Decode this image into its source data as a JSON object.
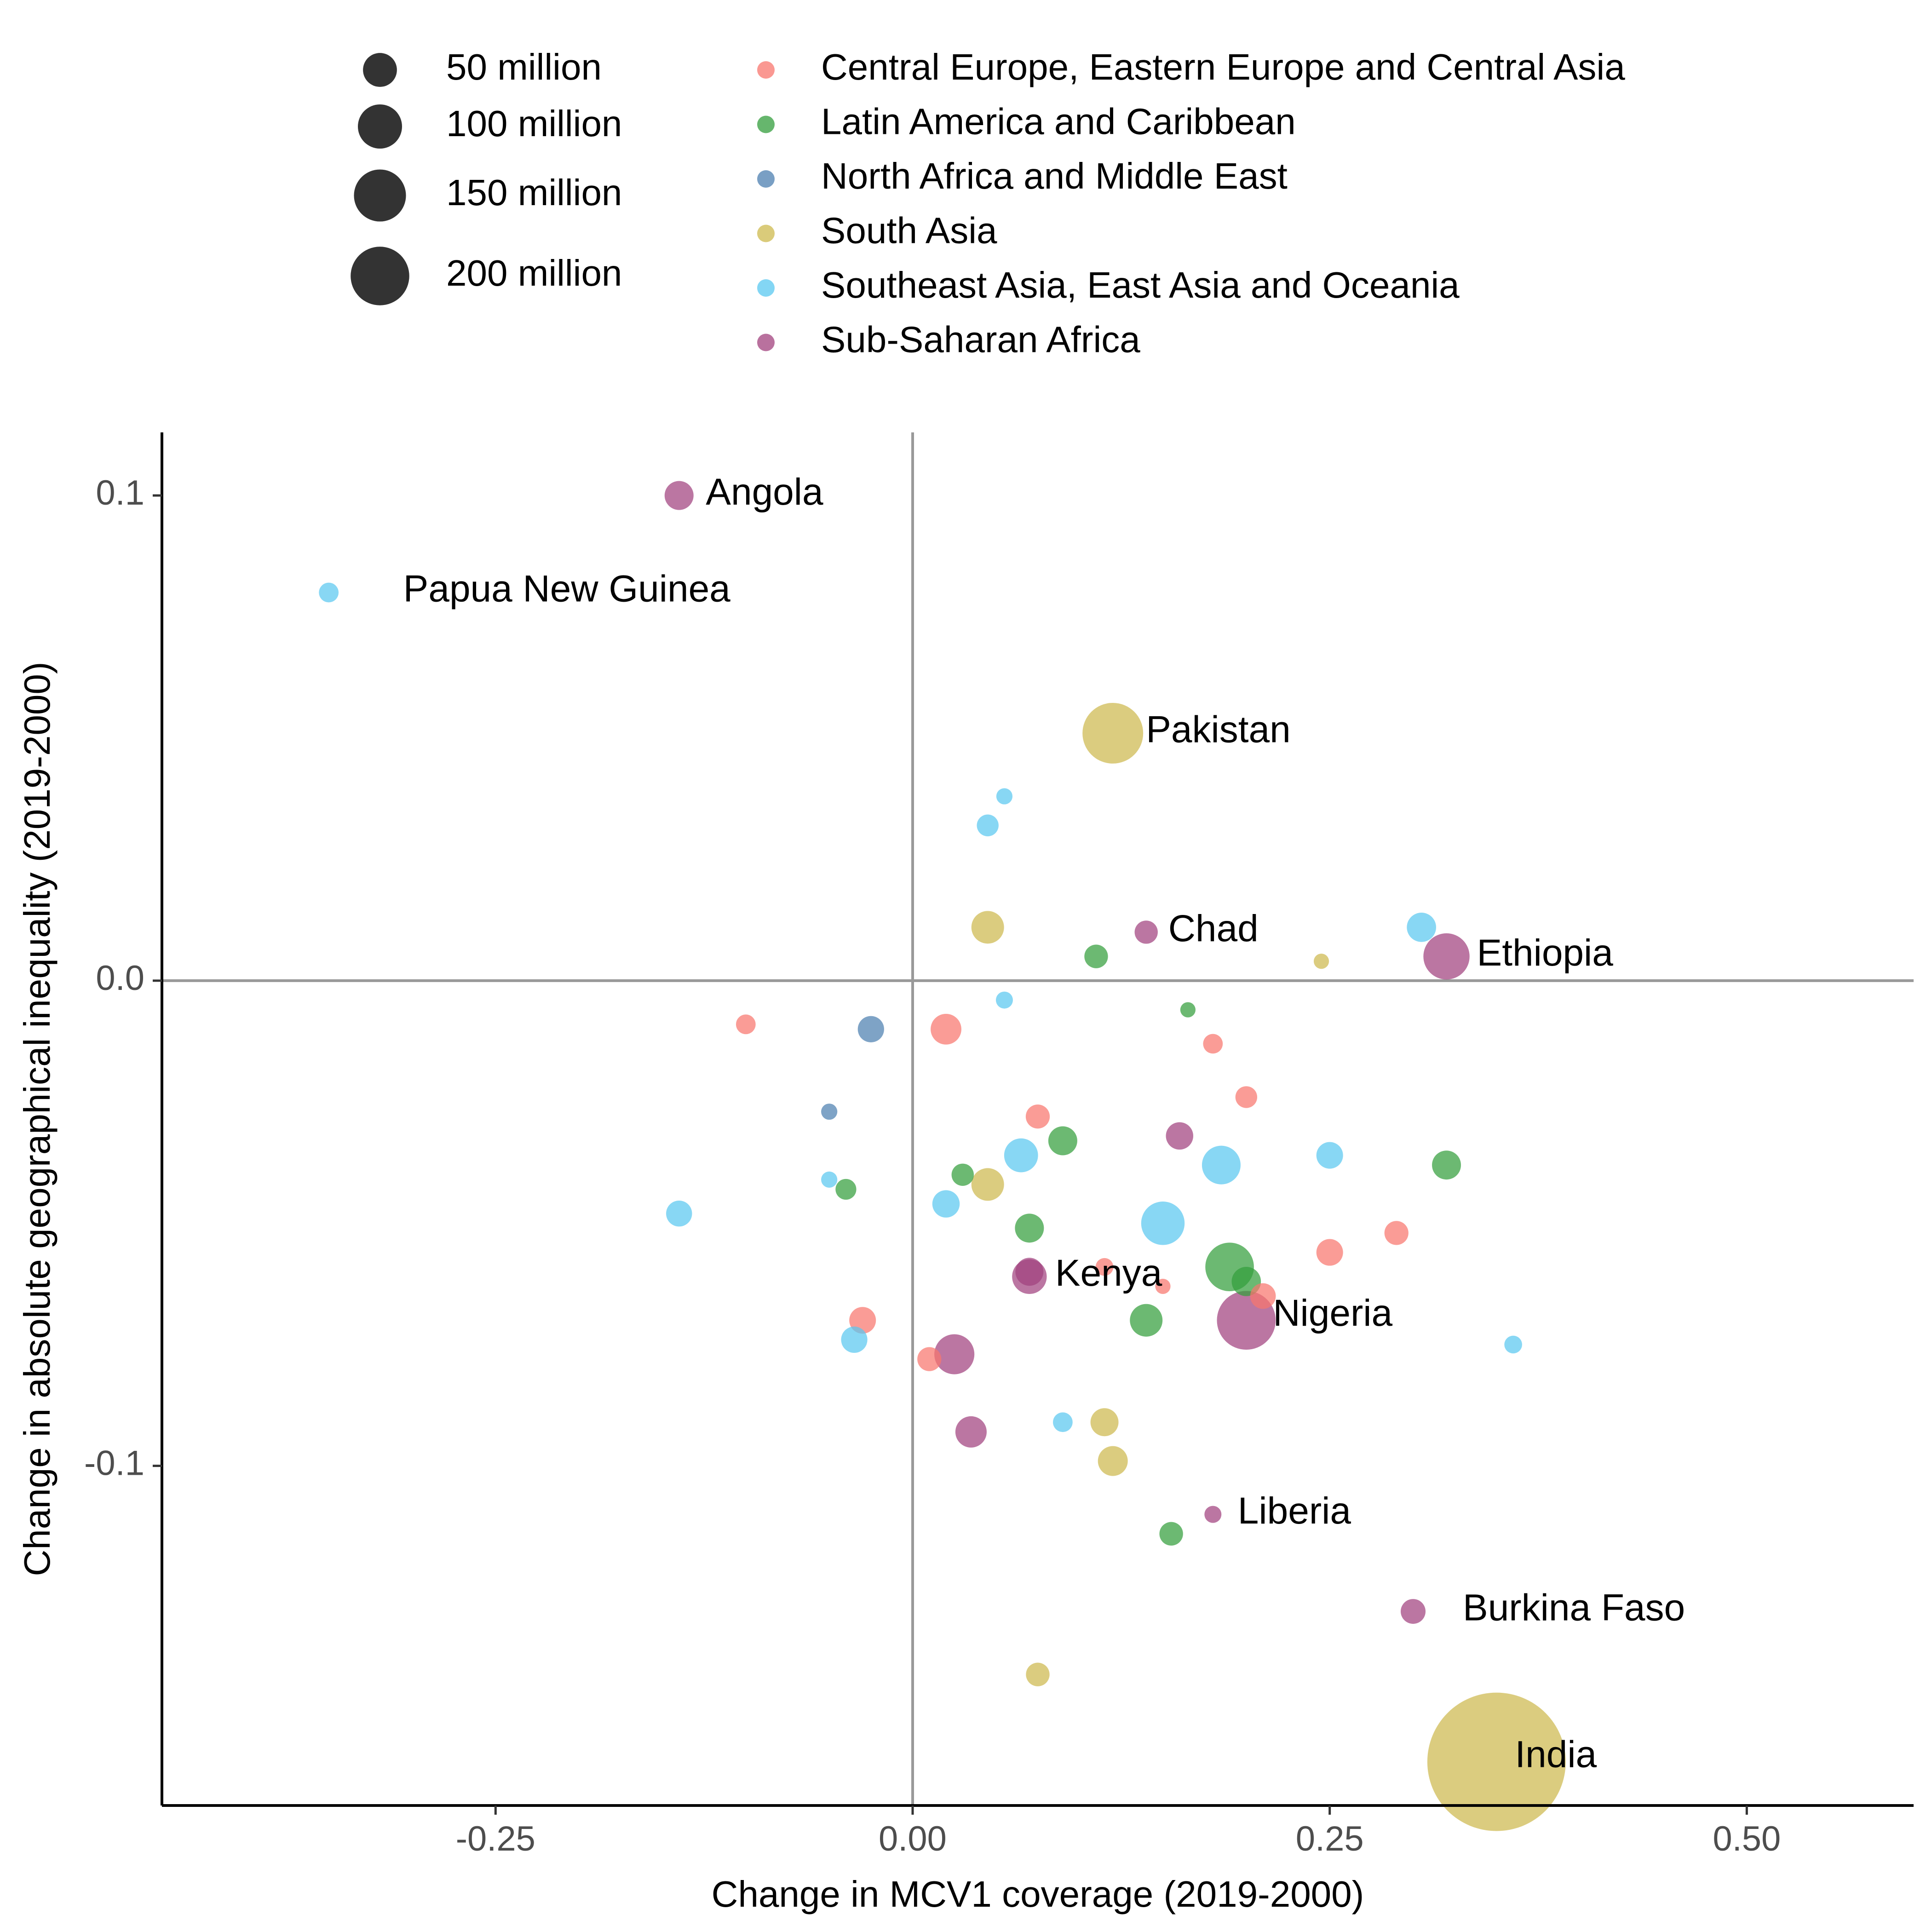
{
  "chart_data": {
    "type": "scatter",
    "title": "",
    "xlabel": "Change in MCV1 coverage (2019-2000)",
    "ylabel": "Change in absolute geographical inequality (2019-2000)",
    "xlim": [
      -0.45,
      0.6
    ],
    "ylim": [
      -0.17,
      0.113
    ],
    "x_ticks": [
      {
        "value": -0.25,
        "label": "-0.25"
      },
      {
        "value": 0.0,
        "label": "0.00"
      },
      {
        "value": 0.25,
        "label": "0.25"
      },
      {
        "value": 0.5,
        "label": "0.50"
      }
    ],
    "y_ticks": [
      {
        "value": 0.1,
        "label": "0.1"
      },
      {
        "value": 0.0,
        "label": "0.0"
      },
      {
        "value": -0.1,
        "label": "-0.1"
      }
    ],
    "reference_lines": {
      "x": 0,
      "y": 0,
      "color": "#999999"
    },
    "grid": false,
    "legend_position": "top",
    "size_legend": [
      {
        "label": "50 million",
        "population_millions": 50
      },
      {
        "label": "100 million",
        "population_millions": 100
      },
      {
        "label": "150 million",
        "population_millions": 150
      },
      {
        "label": "200 million",
        "population_millions": 200
      }
    ],
    "regions": [
      {
        "name": "Central Europe, Eastern Europe and Central Asia",
        "color": "#F8766D"
      },
      {
        "name": "Latin America and Caribbean",
        "color": "#339E3C"
      },
      {
        "name": "North Africa and Middle East",
        "color": "#4C7FB0"
      },
      {
        "name": "South Asia",
        "color": "#CDB94E"
      },
      {
        "name": "Southeast Asia, East Asia and Oceania",
        "color": "#5AC8F0"
      },
      {
        "name": "Sub-Saharan Africa",
        "color": "#A1417E"
      }
    ],
    "points": [
      {
        "x": -0.14,
        "y": 0.1,
        "region": 5,
        "pop": 32,
        "label": "Angola"
      },
      {
        "x": -0.35,
        "y": 0.08,
        "region": 4,
        "pop": 9,
        "label": "Papua New Guinea"
      },
      {
        "x": 0.12,
        "y": 0.051,
        "region": 3,
        "pop": 217,
        "label": "Pakistan"
      },
      {
        "x": 0.14,
        "y": 0.01,
        "region": 5,
        "pop": 16,
        "label": "Chad"
      },
      {
        "x": 0.32,
        "y": 0.005,
        "region": 5,
        "pop": 112,
        "label": "Ethiopia"
      },
      {
        "x": 0.07,
        "y": -0.061,
        "region": 5,
        "pop": 53,
        "label": "Kenya"
      },
      {
        "x": 0.2,
        "y": -0.07,
        "region": 5,
        "pop": 201,
        "label": "Nigeria"
      },
      {
        "x": 0.18,
        "y": -0.11,
        "region": 5,
        "pop": 5,
        "label": "Liberia"
      },
      {
        "x": 0.3,
        "y": -0.13,
        "region": 5,
        "pop": 20,
        "label": "Burkina Faso"
      },
      {
        "x": 0.35,
        "y": -0.161,
        "region": 3,
        "pop": 1366,
        "label": "India"
      },
      {
        "x": -0.1,
        "y": -0.009,
        "region": 0,
        "pop": 9
      },
      {
        "x": 0.02,
        "y": -0.01,
        "region": 0,
        "pop": 38
      },
      {
        "x": 0.18,
        "y": -0.013,
        "region": 0,
        "pop": 9
      },
      {
        "x": 0.2,
        "y": -0.024,
        "region": 0,
        "pop": 13
      },
      {
        "x": 0.075,
        "y": -0.028,
        "region": 0,
        "pop": 18
      },
      {
        "x": 0.29,
        "y": -0.052,
        "region": 0,
        "pop": 18
      },
      {
        "x": 0.25,
        "y": -0.056,
        "region": 0,
        "pop": 25
      },
      {
        "x": 0.115,
        "y": -0.059,
        "region": 0,
        "pop": 6
      },
      {
        "x": 0.15,
        "y": -0.063,
        "region": 0,
        "pop": 3
      },
      {
        "x": 0.21,
        "y": -0.065,
        "region": 0,
        "pop": 22
      },
      {
        "x": -0.03,
        "y": -0.07,
        "region": 0,
        "pop": 25
      },
      {
        "x": 0.01,
        "y": -0.078,
        "region": 0,
        "pop": 18
      },
      {
        "x": 0.11,
        "y": 0.005,
        "region": 1,
        "pop": 17
      },
      {
        "x": 0.165,
        "y": -0.006,
        "region": 1,
        "pop": 3
      },
      {
        "x": 0.09,
        "y": -0.033,
        "region": 1,
        "pop": 32
      },
      {
        "x": 0.03,
        "y": -0.04,
        "region": 1,
        "pop": 14
      },
      {
        "x": -0.04,
        "y": -0.043,
        "region": 1,
        "pop": 11
      },
      {
        "x": 0.07,
        "y": -0.051,
        "region": 1,
        "pop": 32
      },
      {
        "x": 0.32,
        "y": -0.038,
        "region": 1,
        "pop": 32
      },
      {
        "x": 0.19,
        "y": -0.059,
        "region": 1,
        "pop": 127
      },
      {
        "x": 0.2,
        "y": -0.062,
        "region": 1,
        "pop": 33
      },
      {
        "x": 0.14,
        "y": -0.07,
        "region": 1,
        "pop": 45
      },
      {
        "x": 0.155,
        "y": -0.114,
        "region": 1,
        "pop": 17
      },
      {
        "x": -0.025,
        "y": -0.01,
        "region": 2,
        "pop": 24
      },
      {
        "x": -0.05,
        "y": -0.027,
        "region": 2,
        "pop": 4
      },
      {
        "x": 0.045,
        "y": 0.011,
        "region": 3,
        "pop": 45
      },
      {
        "x": 0.245,
        "y": 0.004,
        "region": 3,
        "pop": 3
      },
      {
        "x": 0.045,
        "y": -0.042,
        "region": 3,
        "pop": 45
      },
      {
        "x": 0.115,
        "y": -0.091,
        "region": 3,
        "pop": 29
      },
      {
        "x": 0.12,
        "y": -0.099,
        "region": 3,
        "pop": 35
      },
      {
        "x": 0.075,
        "y": -0.143,
        "region": 3,
        "pop": 17
      },
      {
        "x": 0.055,
        "y": 0.038,
        "region": 4,
        "pop": 4
      },
      {
        "x": 0.045,
        "y": 0.032,
        "region": 4,
        "pop": 13
      },
      {
        "x": 0.305,
        "y": 0.011,
        "region": 4,
        "pop": 33
      },
      {
        "x": 0.055,
        "y": -0.004,
        "region": 4,
        "pop": 5
      },
      {
        "x": 0.065,
        "y": -0.036,
        "region": 4,
        "pop": 50
      },
      {
        "x": 0.185,
        "y": -0.038,
        "region": 4,
        "pop": 71
      },
      {
        "x": 0.25,
        "y": -0.036,
        "region": 4,
        "pop": 25
      },
      {
        "x": -0.05,
        "y": -0.041,
        "region": 4,
        "pop": 4
      },
      {
        "x": 0.02,
        "y": -0.046,
        "region": 4,
        "pop": 27
      },
      {
        "x": -0.14,
        "y": -0.048,
        "region": 4,
        "pop": 23
      },
      {
        "x": 0.15,
        "y": -0.05,
        "region": 4,
        "pop": 96
      },
      {
        "x": -0.035,
        "y": -0.074,
        "region": 4,
        "pop": 24
      },
      {
        "x": 0.09,
        "y": -0.091,
        "region": 4,
        "pop": 9
      },
      {
        "x": 0.36,
        "y": -0.075,
        "region": 4,
        "pop": 6
      },
      {
        "x": 0.16,
        "y": -0.032,
        "region": 5,
        "pop": 27
      },
      {
        "x": 0.07,
        "y": -0.06,
        "region": 5,
        "pop": 29
      },
      {
        "x": 0.025,
        "y": -0.077,
        "region": 5,
        "pop": 78
      },
      {
        "x": 0.035,
        "y": -0.093,
        "region": 5,
        "pop": 40
      }
    ]
  }
}
